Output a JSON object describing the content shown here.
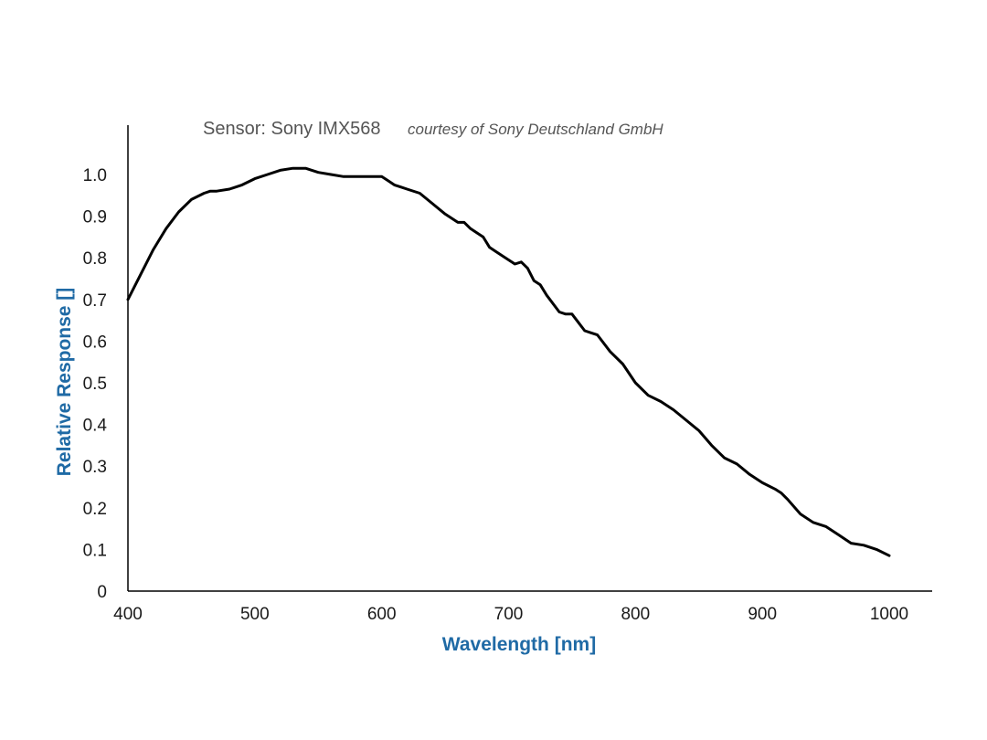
{
  "chart_data": {
    "type": "line",
    "title": "Sensor: Sony IMX568",
    "subtitle": "courtesy of Sony Deutschland GmbH",
    "xlabel": "Wavelength [nm]",
    "ylabel": "Relative Response []",
    "xlim": [
      400,
      1000
    ],
    "ylim": [
      0,
      1.0
    ],
    "x_ticks": [
      "400",
      "500",
      "600",
      "700",
      "800",
      "900",
      "1000"
    ],
    "y_ticks": [
      "0",
      "0.1",
      "0.2",
      "0.3",
      "0.4",
      "0.5",
      "0.6",
      "0.7",
      "0.8",
      "0.9",
      "1.0"
    ],
    "grid": false,
    "label_color": "#1f6aa5",
    "line_color": "#000000",
    "series": [
      {
        "x": [
          400,
          410,
          420,
          430,
          440,
          450,
          460,
          465,
          470,
          480,
          490,
          500,
          510,
          520,
          530,
          540,
          545,
          550,
          560,
          570,
          580,
          590,
          600,
          605,
          610,
          615,
          620,
          630,
          640,
          650,
          660,
          665,
          670,
          680,
          685,
          690,
          700,
          705,
          710,
          715,
          720,
          725,
          730,
          740,
          745,
          750,
          760,
          765,
          770,
          780,
          790,
          800,
          810,
          820,
          830,
          840,
          850,
          860,
          870,
          880,
          890,
          900,
          910,
          915,
          920,
          930,
          940,
          950,
          960,
          970,
          980,
          990,
          1000
        ],
        "y": [
          0.7,
          0.76,
          0.82,
          0.87,
          0.91,
          0.94,
          0.955,
          0.96,
          0.96,
          0.965,
          0.975,
          0.99,
          1.0,
          1.01,
          1.015,
          1.015,
          1.01,
          1.005,
          1.0,
          0.995,
          0.995,
          0.995,
          0.995,
          0.985,
          0.975,
          0.97,
          0.965,
          0.955,
          0.93,
          0.905,
          0.885,
          0.885,
          0.87,
          0.85,
          0.825,
          0.815,
          0.795,
          0.785,
          0.79,
          0.775,
          0.745,
          0.735,
          0.71,
          0.67,
          0.665,
          0.665,
          0.625,
          0.62,
          0.615,
          0.575,
          0.545,
          0.5,
          0.47,
          0.455,
          0.435,
          0.41,
          0.385,
          0.35,
          0.32,
          0.305,
          0.28,
          0.26,
          0.245,
          0.235,
          0.22,
          0.185,
          0.165,
          0.155,
          0.135,
          0.115,
          0.11,
          0.1,
          0.085
        ]
      }
    ]
  }
}
